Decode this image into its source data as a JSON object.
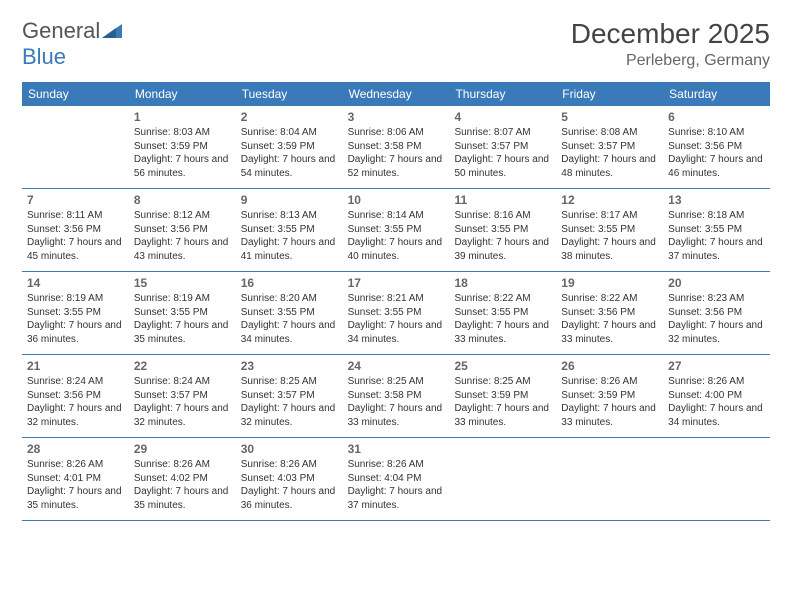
{
  "logo": {
    "text1": "General",
    "text2": "Blue"
  },
  "title": "December 2025",
  "location": "Perleberg, Germany",
  "colors": {
    "header_bg": "#3a7ab8",
    "header_text": "#ffffff",
    "border": "#3a7ab8",
    "daynum": "#666666",
    "body_text": "#333333",
    "title_color": "#444444",
    "location_color": "#666666"
  },
  "typography": {
    "title_fontsize": 28,
    "location_fontsize": 16,
    "weekday_fontsize": 12,
    "daynum_fontsize": 12,
    "cell_fontsize": 10
  },
  "weekdays": [
    "Sunday",
    "Monday",
    "Tuesday",
    "Wednesday",
    "Thursday",
    "Friday",
    "Saturday"
  ],
  "start_blank": 1,
  "days": [
    {
      "n": 1,
      "sunrise": "8:03 AM",
      "sunset": "3:59 PM",
      "daylight": "7 hours and 56 minutes."
    },
    {
      "n": 2,
      "sunrise": "8:04 AM",
      "sunset": "3:59 PM",
      "daylight": "7 hours and 54 minutes."
    },
    {
      "n": 3,
      "sunrise": "8:06 AM",
      "sunset": "3:58 PM",
      "daylight": "7 hours and 52 minutes."
    },
    {
      "n": 4,
      "sunrise": "8:07 AM",
      "sunset": "3:57 PM",
      "daylight": "7 hours and 50 minutes."
    },
    {
      "n": 5,
      "sunrise": "8:08 AM",
      "sunset": "3:57 PM",
      "daylight": "7 hours and 48 minutes."
    },
    {
      "n": 6,
      "sunrise": "8:10 AM",
      "sunset": "3:56 PM",
      "daylight": "7 hours and 46 minutes."
    },
    {
      "n": 7,
      "sunrise": "8:11 AM",
      "sunset": "3:56 PM",
      "daylight": "7 hours and 45 minutes."
    },
    {
      "n": 8,
      "sunrise": "8:12 AM",
      "sunset": "3:56 PM",
      "daylight": "7 hours and 43 minutes."
    },
    {
      "n": 9,
      "sunrise": "8:13 AM",
      "sunset": "3:55 PM",
      "daylight": "7 hours and 41 minutes."
    },
    {
      "n": 10,
      "sunrise": "8:14 AM",
      "sunset": "3:55 PM",
      "daylight": "7 hours and 40 minutes."
    },
    {
      "n": 11,
      "sunrise": "8:16 AM",
      "sunset": "3:55 PM",
      "daylight": "7 hours and 39 minutes."
    },
    {
      "n": 12,
      "sunrise": "8:17 AM",
      "sunset": "3:55 PM",
      "daylight": "7 hours and 38 minutes."
    },
    {
      "n": 13,
      "sunrise": "8:18 AM",
      "sunset": "3:55 PM",
      "daylight": "7 hours and 37 minutes."
    },
    {
      "n": 14,
      "sunrise": "8:19 AM",
      "sunset": "3:55 PM",
      "daylight": "7 hours and 36 minutes."
    },
    {
      "n": 15,
      "sunrise": "8:19 AM",
      "sunset": "3:55 PM",
      "daylight": "7 hours and 35 minutes."
    },
    {
      "n": 16,
      "sunrise": "8:20 AM",
      "sunset": "3:55 PM",
      "daylight": "7 hours and 34 minutes."
    },
    {
      "n": 17,
      "sunrise": "8:21 AM",
      "sunset": "3:55 PM",
      "daylight": "7 hours and 34 minutes."
    },
    {
      "n": 18,
      "sunrise": "8:22 AM",
      "sunset": "3:55 PM",
      "daylight": "7 hours and 33 minutes."
    },
    {
      "n": 19,
      "sunrise": "8:22 AM",
      "sunset": "3:56 PM",
      "daylight": "7 hours and 33 minutes."
    },
    {
      "n": 20,
      "sunrise": "8:23 AM",
      "sunset": "3:56 PM",
      "daylight": "7 hours and 32 minutes."
    },
    {
      "n": 21,
      "sunrise": "8:24 AM",
      "sunset": "3:56 PM",
      "daylight": "7 hours and 32 minutes."
    },
    {
      "n": 22,
      "sunrise": "8:24 AM",
      "sunset": "3:57 PM",
      "daylight": "7 hours and 32 minutes."
    },
    {
      "n": 23,
      "sunrise": "8:25 AM",
      "sunset": "3:57 PM",
      "daylight": "7 hours and 32 minutes."
    },
    {
      "n": 24,
      "sunrise": "8:25 AM",
      "sunset": "3:58 PM",
      "daylight": "7 hours and 33 minutes."
    },
    {
      "n": 25,
      "sunrise": "8:25 AM",
      "sunset": "3:59 PM",
      "daylight": "7 hours and 33 minutes."
    },
    {
      "n": 26,
      "sunrise": "8:26 AM",
      "sunset": "3:59 PM",
      "daylight": "7 hours and 33 minutes."
    },
    {
      "n": 27,
      "sunrise": "8:26 AM",
      "sunset": "4:00 PM",
      "daylight": "7 hours and 34 minutes."
    },
    {
      "n": 28,
      "sunrise": "8:26 AM",
      "sunset": "4:01 PM",
      "daylight": "7 hours and 35 minutes."
    },
    {
      "n": 29,
      "sunrise": "8:26 AM",
      "sunset": "4:02 PM",
      "daylight": "7 hours and 35 minutes."
    },
    {
      "n": 30,
      "sunrise": "8:26 AM",
      "sunset": "4:03 PM",
      "daylight": "7 hours and 36 minutes."
    },
    {
      "n": 31,
      "sunrise": "8:26 AM",
      "sunset": "4:04 PM",
      "daylight": "7 hours and 37 minutes."
    }
  ],
  "labels": {
    "sunrise": "Sunrise:",
    "sunset": "Sunset:",
    "daylight": "Daylight:"
  }
}
